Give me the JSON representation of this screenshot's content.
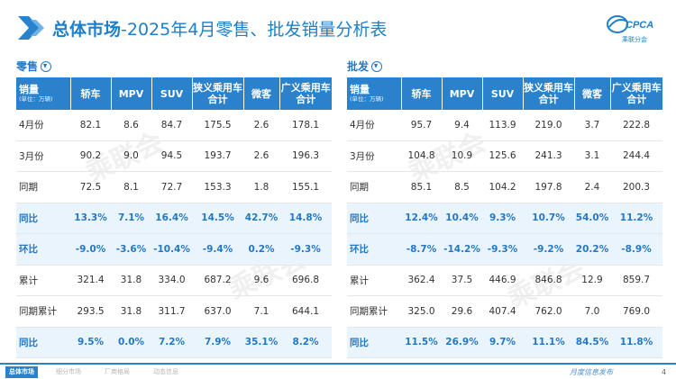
{
  "header": {
    "title_main": "总体市场",
    "title_sub": "-2025年4月零售、批发销量分析表",
    "logo_text": "CPCA",
    "logo_cn": "乘联分会"
  },
  "retail": {
    "label": "零售",
    "head_first": "销量",
    "head_unit": "(单位：万辆)",
    "columns": [
      "轿车",
      "MPV",
      "SUV",
      "狭义乘用车\n合计",
      "微客",
      "广义乘用车\n合计"
    ],
    "rows": [
      {
        "label": "4月份",
        "values": [
          "82.1",
          "8.6",
          "84.7",
          "175.5",
          "2.6",
          "178.1"
        ],
        "highlight": false
      },
      {
        "label": "3月份",
        "values": [
          "90.2",
          "9.0",
          "94.5",
          "193.7",
          "2.6",
          "196.3"
        ],
        "highlight": false
      },
      {
        "label": "同期",
        "values": [
          "72.5",
          "8.1",
          "72.7",
          "153.3",
          "1.8",
          "155.1"
        ],
        "highlight": false
      },
      {
        "label": "同比",
        "values": [
          "13.3%",
          "7.1%",
          "16.4%",
          "14.5%",
          "42.7%",
          "14.8%"
        ],
        "highlight": true
      },
      {
        "label": "环比",
        "values": [
          "-9.0%",
          "-3.6%",
          "-10.4%",
          "-9.4%",
          "0.2%",
          "-9.3%"
        ],
        "highlight": true
      },
      {
        "label": "累计",
        "values": [
          "321.4",
          "31.8",
          "334.0",
          "687.2",
          "9.6",
          "696.8"
        ],
        "highlight": false
      },
      {
        "label": "同期累计",
        "values": [
          "293.5",
          "31.8",
          "311.7",
          "637.0",
          "7.1",
          "644.1"
        ],
        "highlight": false
      },
      {
        "label": "同比",
        "values": [
          "9.5%",
          "0.0%",
          "7.2%",
          "7.9%",
          "35.1%",
          "8.2%"
        ],
        "highlight": true
      }
    ]
  },
  "wholesale": {
    "label": "批发",
    "head_first": "销量",
    "head_unit": "(单位：万辆)",
    "columns": [
      "轿车",
      "MPV",
      "SUV",
      "狭义乘用车\n合计",
      "微客",
      "广义乘用车\n合计"
    ],
    "rows": [
      {
        "label": "4月份",
        "values": [
          "95.7",
          "9.4",
          "113.9",
          "219.0",
          "3.7",
          "222.8"
        ],
        "highlight": false
      },
      {
        "label": "3月份",
        "values": [
          "104.8",
          "10.9",
          "125.6",
          "241.3",
          "3.1",
          "244.4"
        ],
        "highlight": false
      },
      {
        "label": "同期",
        "values": [
          "85.1",
          "8.5",
          "104.2",
          "197.8",
          "2.4",
          "200.3"
        ],
        "highlight": false
      },
      {
        "label": "同比",
        "values": [
          "12.4%",
          "10.4%",
          "9.3%",
          "10.7%",
          "54.0%",
          "11.2%"
        ],
        "highlight": true
      },
      {
        "label": "环比",
        "values": [
          "-8.7%",
          "-14.2%",
          "-9.3%",
          "-9.2%",
          "20.2%",
          "-8.9%"
        ],
        "highlight": true
      },
      {
        "label": "累计",
        "values": [
          "362.4",
          "37.5",
          "446.9",
          "846.8",
          "12.9",
          "859.7"
        ],
        "highlight": false
      },
      {
        "label": "同期累计",
        "values": [
          "325.0",
          "29.6",
          "407.4",
          "762.0",
          "7.0",
          "769.0"
        ],
        "highlight": false
      },
      {
        "label": "同比",
        "values": [
          "11.5%",
          "26.9%",
          "9.7%",
          "11.1%",
          "84.5%",
          "11.8%"
        ],
        "highlight": true
      }
    ]
  },
  "watermark_text": "乘联会",
  "footer": {
    "tabs": [
      "总体市场",
      "细分市场",
      "厂商格局",
      "动态信息"
    ],
    "release": "月度信息发布",
    "page": "4"
  },
  "colors": {
    "brand_blue": "#2b82cc",
    "title_blue": "#1f7fc8",
    "highlight_bg": "#eaf4fc"
  }
}
